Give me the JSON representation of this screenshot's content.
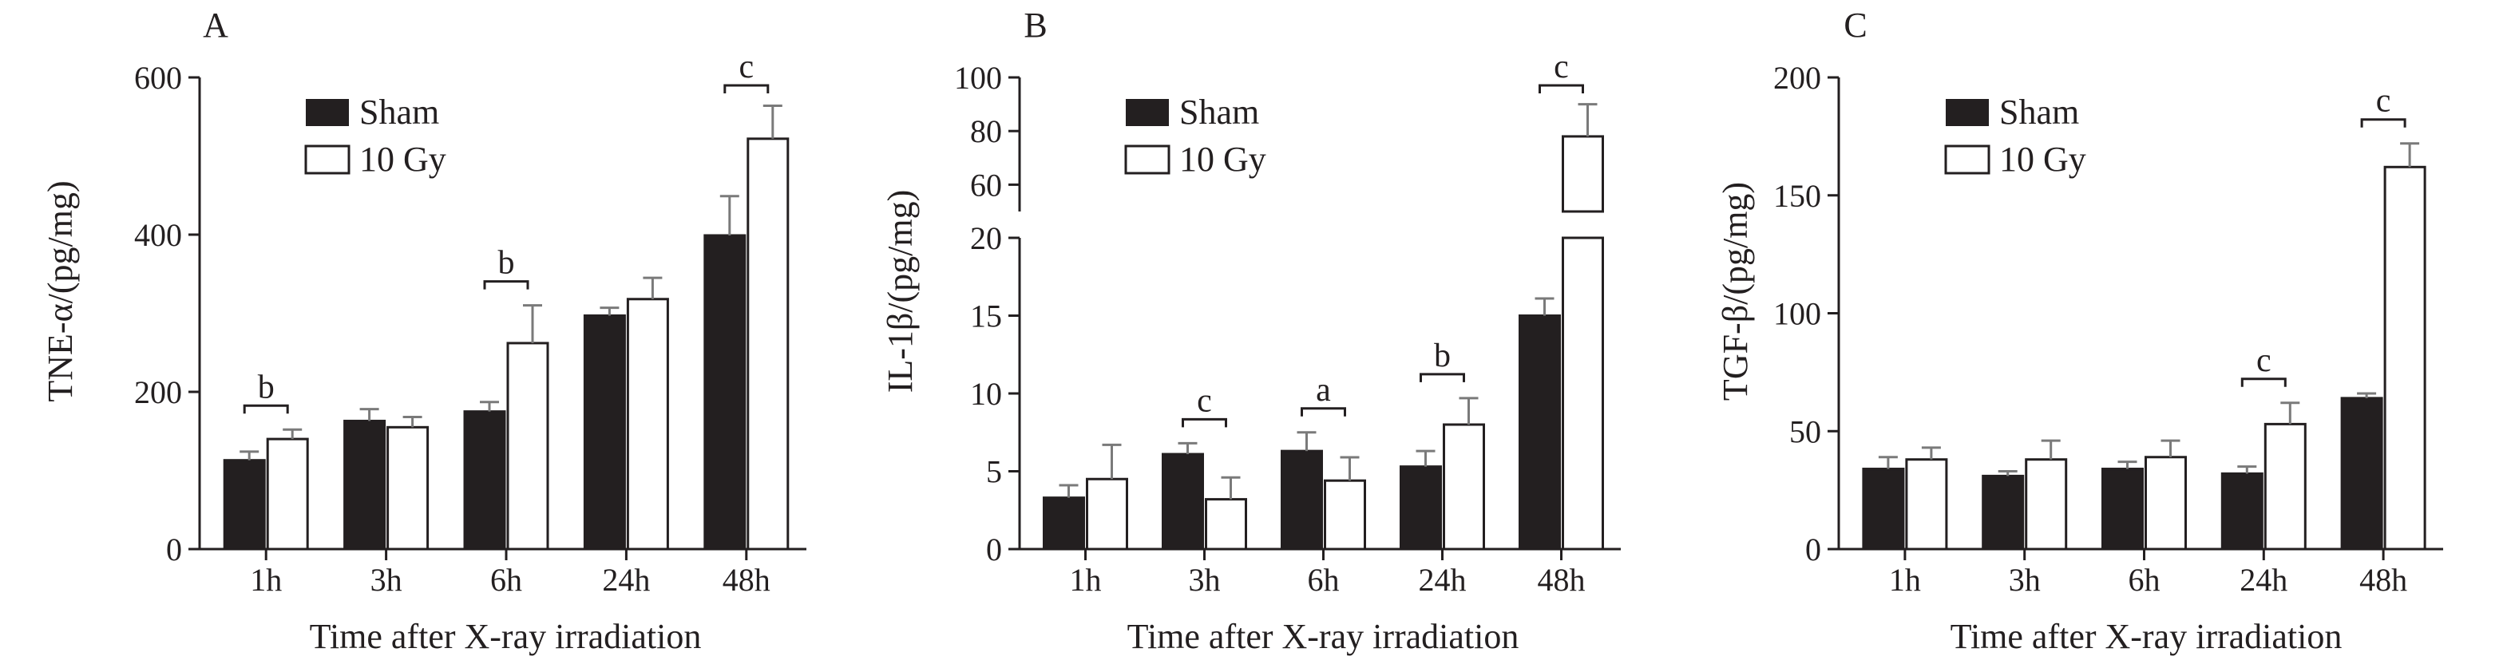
{
  "colors": {
    "ink": "#231f20",
    "sham": "#231f20",
    "gy": "#ffffff",
    "err": "#7a7a7a"
  },
  "chart_data": [
    {
      "type": "bar",
      "panel": "A",
      "categories": [
        "1h",
        "3h",
        "6h",
        "24h",
        "48h"
      ],
      "xlabel": "Time after X-ray irradiation",
      "ylabel": "TNE-α/(pg/mg)",
      "ylim": [
        0,
        600
      ],
      "yticks": [
        0,
        200,
        400,
        600
      ],
      "yticklabels": [
        "0",
        "200",
        "400",
        "600"
      ],
      "legend": [
        "Sham",
        "10 Gy"
      ],
      "series": [
        {
          "name": "Sham",
          "values": [
            113,
            163,
            175,
            297,
            399
          ],
          "errors": [
            11,
            15,
            12,
            10,
            50
          ]
        },
        {
          "name": "10 Gy",
          "values": [
            140,
            155,
            262,
            318,
            522
          ],
          "errors": [
            12,
            13,
            48,
            27,
            42
          ]
        }
      ],
      "significance": [
        {
          "category": "1h",
          "label": "b"
        },
        {
          "category": "6h",
          "label": "b"
        },
        {
          "category": "48h",
          "label": "c"
        }
      ]
    },
    {
      "type": "bar",
      "panel": "B",
      "categories": [
        "1h",
        "3h",
        "6h",
        "24h",
        "48h"
      ],
      "xlabel": "Time after X-ray irradiation",
      "ylabel": "IL-1β/(pg/mg)",
      "ylim": [
        0,
        100
      ],
      "axis_break": [
        20,
        50
      ],
      "yticks": [
        0,
        5,
        10,
        15,
        20,
        60,
        80,
        100
      ],
      "yticklabels": [
        "0",
        "5",
        "10",
        "15",
        "20",
        "60",
        "80",
        "100"
      ],
      "legend": [
        "Sham",
        "10 Gy"
      ],
      "series": [
        {
          "name": "Sham",
          "values": [
            3.3,
            6.1,
            6.3,
            5.3,
            15.0
          ],
          "errors": [
            0.8,
            0.7,
            1.2,
            1.0,
            1.1
          ]
        },
        {
          "name": "10 Gy",
          "values": [
            4.5,
            3.2,
            4.4,
            8.0,
            78
          ],
          "errors": [
            2.2,
            1.4,
            1.5,
            1.7,
            12
          ]
        }
      ],
      "significance": [
        {
          "category": "3h",
          "label": "c"
        },
        {
          "category": "6h",
          "label": "a"
        },
        {
          "category": "24h",
          "label": "b"
        },
        {
          "category": "48h",
          "label": "c"
        }
      ]
    },
    {
      "type": "bar",
      "panel": "C",
      "categories": [
        "1h",
        "3h",
        "6h",
        "24h",
        "48h"
      ],
      "xlabel": "Time after X-ray irradiation",
      "ylabel": "TGF-β/(pg/mg)",
      "ylim": [
        0,
        200
      ],
      "yticks": [
        0,
        50,
        100,
        150,
        200
      ],
      "yticklabels": [
        "0",
        "50",
        "100",
        "150",
        "200"
      ],
      "legend": [
        "Sham",
        "10 Gy"
      ],
      "series": [
        {
          "name": "Sham",
          "values": [
            34,
            31,
            34,
            32,
            64
          ],
          "errors": [
            5,
            2,
            3,
            3,
            2
          ]
        },
        {
          "name": "10 Gy",
          "values": [
            38,
            38,
            39,
            53,
            162
          ],
          "errors": [
            5,
            8,
            7,
            9,
            10
          ]
        }
      ],
      "significance": [
        {
          "category": "24h",
          "label": "c"
        },
        {
          "category": "48h",
          "label": "c"
        }
      ]
    }
  ]
}
